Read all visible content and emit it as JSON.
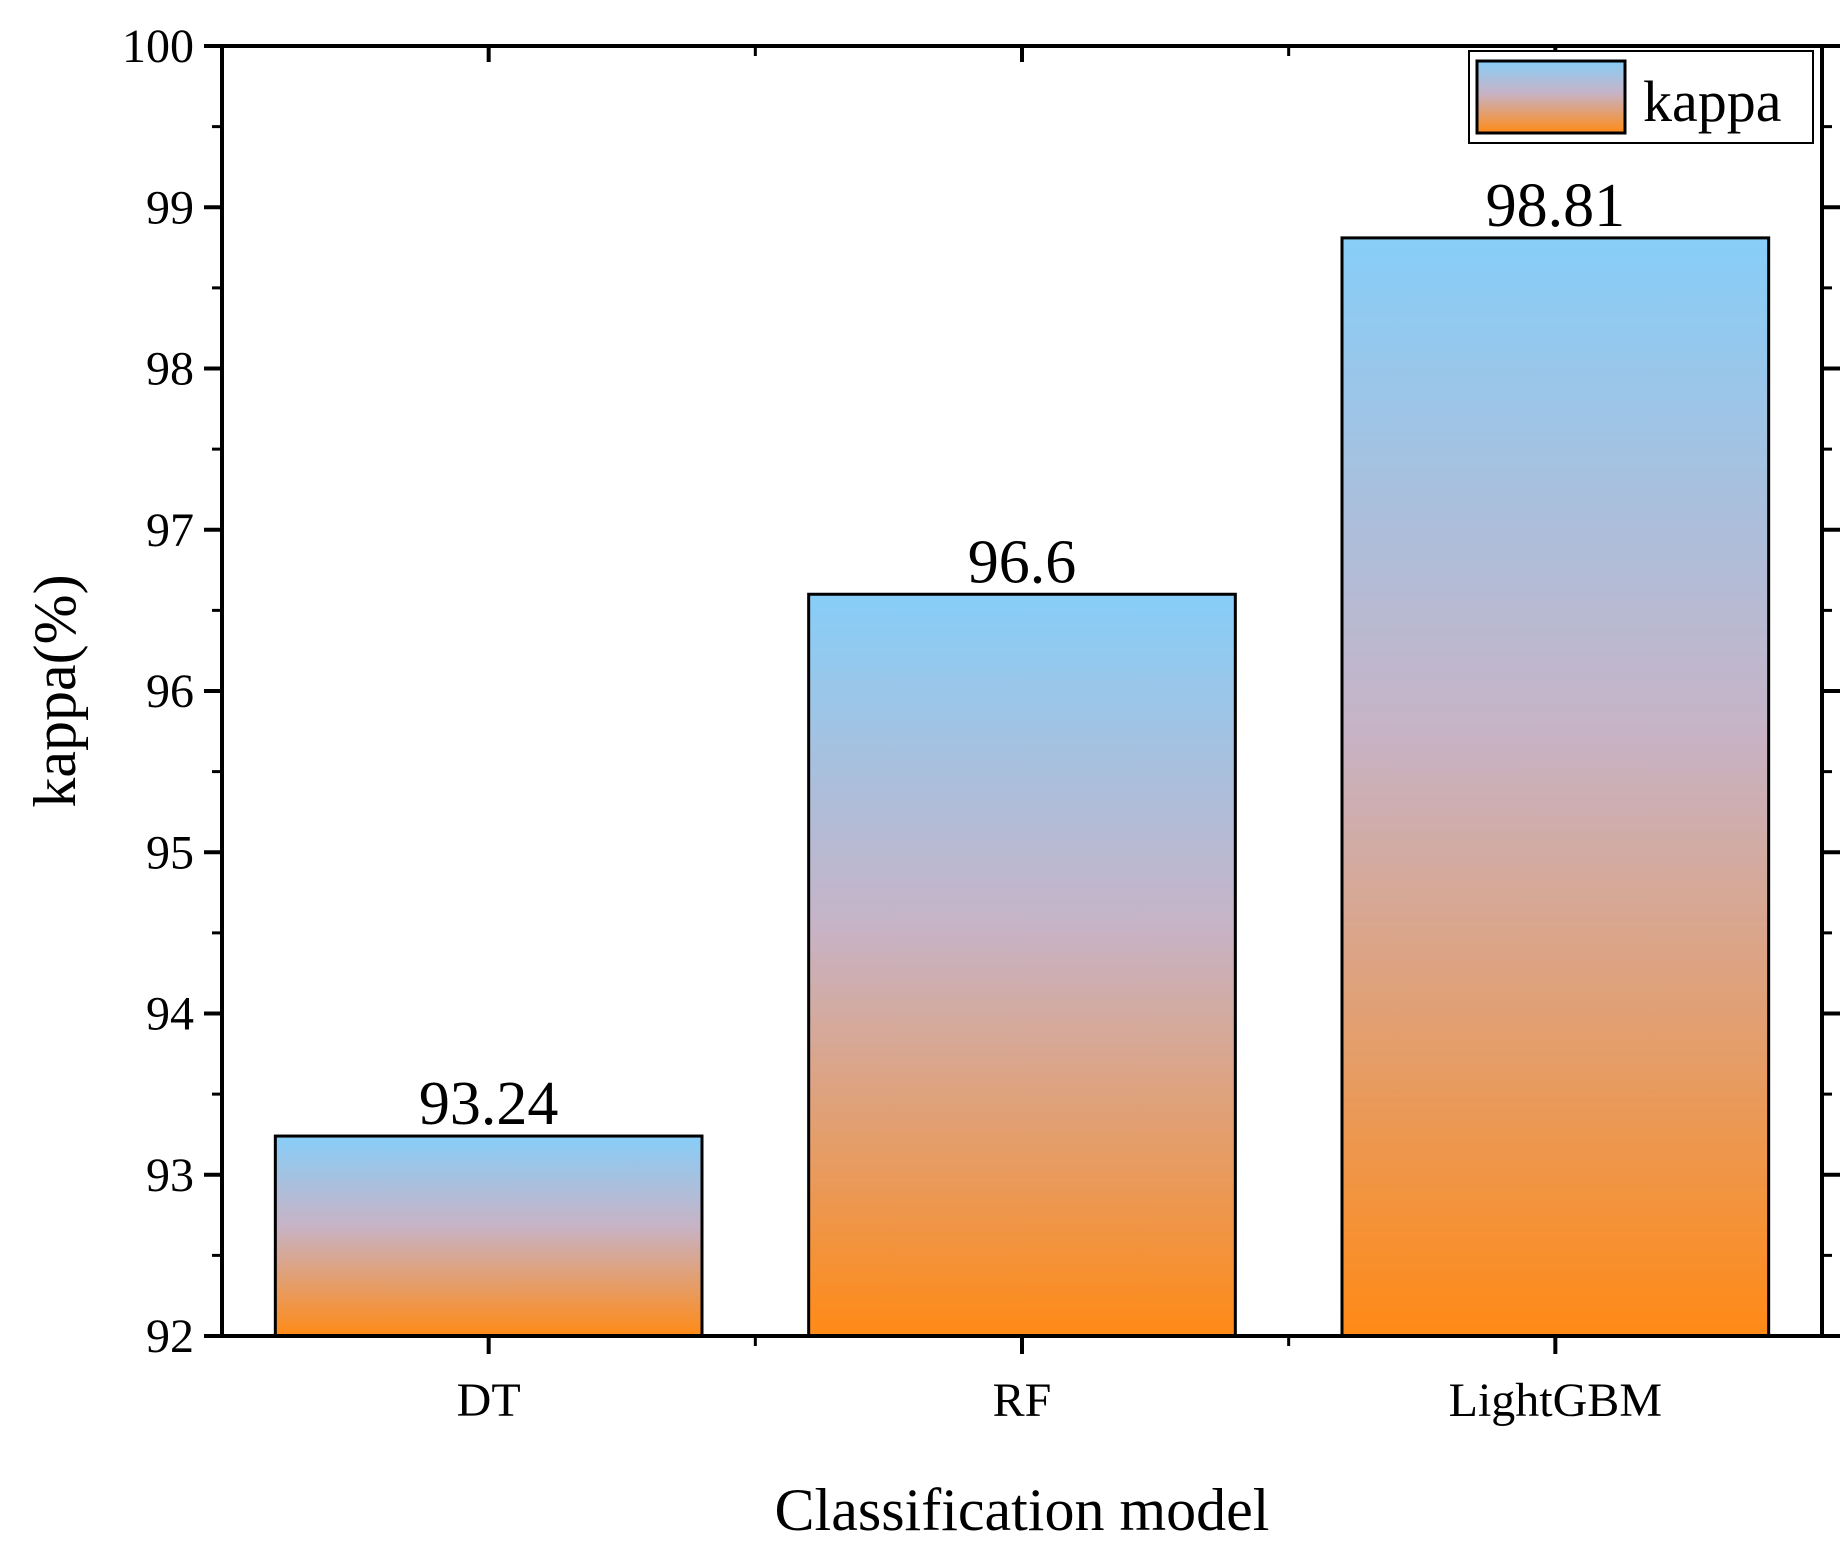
{
  "chart_data": {
    "type": "bar",
    "categories": [
      "DT",
      "RF",
      "LightGBM"
    ],
    "series": [
      {
        "name": "kappa",
        "values": [
          93.24,
          96.6,
          98.81
        ]
      }
    ],
    "data_labels": [
      "93.24",
      "96.6",
      "98.81"
    ],
    "title": "",
    "xlabel": "Classification model",
    "ylabel": "kappa(%)",
    "ylim": [
      92,
      100
    ],
    "yticks": [
      92,
      93,
      94,
      95,
      96,
      97,
      98,
      99,
      100
    ],
    "grid": false,
    "legend": {
      "position": "top-right",
      "entries": [
        "kappa"
      ]
    },
    "colors": {
      "gradient_top": "#87CEF8",
      "gradient_mid": "#C7B3C6",
      "gradient_bottom": "#FF8A16",
      "stroke": "#000000"
    }
  }
}
